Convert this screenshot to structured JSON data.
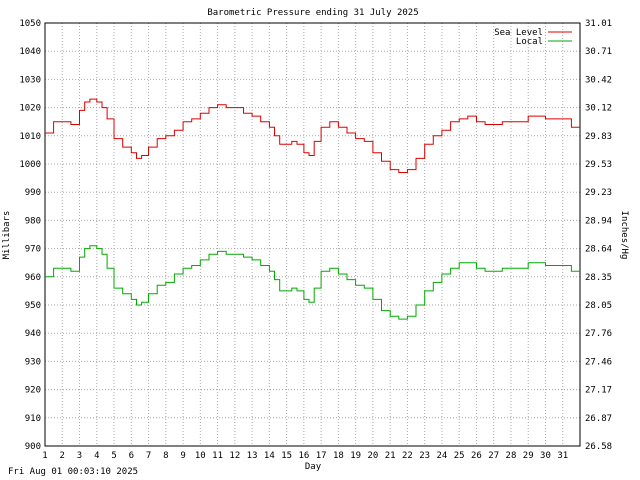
{
  "footer": {
    "timestamp": "Fri Aug 01 00:03:10 2025"
  },
  "chart_data": {
    "type": "line",
    "title": "Barometric Pressure ending 31 July 2025",
    "xlabel": "Day",
    "ylabel": "Millibars",
    "ylabel_right": "Inches/Hg",
    "xlim": [
      1,
      32
    ],
    "ylim": [
      900,
      1050
    ],
    "grid": true,
    "legend_position": "top-right",
    "x_ticks": [
      "1",
      "2",
      "3",
      "4",
      "5",
      "6",
      "7",
      "8",
      "9",
      "10",
      "11",
      "12",
      "13",
      "14",
      "15",
      "16",
      "17",
      "18",
      "19",
      "20",
      "21",
      "22",
      "23",
      "24",
      "25",
      "26",
      "27",
      "28",
      "29",
      "30",
      "31"
    ],
    "y_ticks": [
      900,
      910,
      920,
      930,
      940,
      950,
      960,
      970,
      980,
      990,
      1000,
      1010,
      1020,
      1030,
      1040,
      1050
    ],
    "y_ticks_right": [
      "26.58",
      "26.87",
      "27.17",
      "27.46",
      "27.76",
      "28.05",
      "28.35",
      "28.64",
      "28.94",
      "29.23",
      "29.53",
      "29.83",
      "30.12",
      "30.42",
      "30.71",
      "31.01"
    ],
    "series": [
      {
        "name": "Sea Level",
        "color": "#dd0000",
        "x": [
          1.0,
          1.5,
          2.0,
          2.5,
          3.0,
          3.3,
          3.6,
          4.0,
          4.3,
          4.6,
          5.0,
          5.5,
          6.0,
          6.3,
          6.6,
          7.0,
          7.5,
          8.0,
          8.5,
          9.0,
          9.5,
          10.0,
          10.5,
          11.0,
          11.5,
          12.0,
          12.5,
          13.0,
          13.5,
          14.0,
          14.3,
          14.6,
          15.0,
          15.3,
          15.6,
          16.0,
          16.3,
          16.6,
          17.0,
          17.5,
          18.0,
          18.5,
          19.0,
          19.5,
          20.0,
          20.5,
          21.0,
          21.5,
          22.0,
          22.5,
          23.0,
          23.5,
          24.0,
          24.5,
          25.0,
          25.5,
          26.0,
          26.5,
          27.0,
          27.5,
          28.0,
          28.5,
          29.0,
          29.5,
          30.0,
          30.5,
          31.0,
          31.5,
          32.0
        ],
        "values": [
          1011,
          1015,
          1015,
          1014,
          1019,
          1022,
          1023,
          1022,
          1020,
          1016,
          1009,
          1006,
          1004,
          1002,
          1003,
          1006,
          1009,
          1010,
          1012,
          1015,
          1016,
          1018,
          1020,
          1021,
          1020,
          1020,
          1018,
          1017,
          1015,
          1013,
          1010,
          1007,
          1007,
          1008,
          1007,
          1004,
          1003,
          1008,
          1013,
          1015,
          1013,
          1011,
          1009,
          1008,
          1004,
          1001,
          998,
          997,
          998,
          1002,
          1007,
          1010,
          1012,
          1015,
          1016,
          1017,
          1015,
          1014,
          1014,
          1015,
          1015,
          1015,
          1017,
          1017,
          1016,
          1016,
          1016,
          1013,
          1013
        ]
      },
      {
        "name": "Local",
        "color": "#00aa00",
        "x": [
          1.0,
          1.5,
          2.0,
          2.5,
          3.0,
          3.3,
          3.6,
          4.0,
          4.3,
          4.6,
          5.0,
          5.5,
          6.0,
          6.3,
          6.6,
          7.0,
          7.5,
          8.0,
          8.5,
          9.0,
          9.5,
          10.0,
          10.5,
          11.0,
          11.5,
          12.0,
          12.5,
          13.0,
          13.5,
          14.0,
          14.3,
          14.6,
          15.0,
          15.3,
          15.6,
          16.0,
          16.3,
          16.6,
          17.0,
          17.5,
          18.0,
          18.5,
          19.0,
          19.5,
          20.0,
          20.5,
          21.0,
          21.5,
          22.0,
          22.5,
          23.0,
          23.5,
          24.0,
          24.5,
          25.0,
          25.5,
          26.0,
          26.5,
          27.0,
          27.5,
          28.0,
          28.5,
          29.0,
          29.5,
          30.0,
          30.5,
          31.0,
          31.5,
          32.0
        ],
        "values": [
          960,
          963,
          963,
          962,
          967,
          970,
          971,
          970,
          968,
          963,
          956,
          954,
          952,
          950,
          951,
          954,
          957,
          958,
          961,
          963,
          964,
          966,
          968,
          969,
          968,
          968,
          967,
          966,
          964,
          962,
          959,
          955,
          955,
          956,
          955,
          952,
          951,
          956,
          962,
          963,
          961,
          959,
          957,
          956,
          952,
          948,
          946,
          945,
          946,
          950,
          955,
          958,
          961,
          963,
          965,
          965,
          963,
          962,
          962,
          963,
          963,
          963,
          965,
          965,
          964,
          964,
          964,
          962,
          962
        ]
      }
    ]
  }
}
